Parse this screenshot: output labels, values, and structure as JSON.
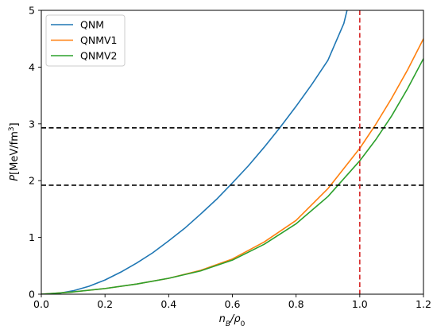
{
  "chart_data": {
    "type": "line",
    "title": "",
    "xlabel_main": "n",
    "xlabel_sub": "B",
    "xlabel_sep": "/ρ",
    "xlabel_sub2": "0",
    "ylabel_main": "P",
    "ylabel_unit": "[MeV/fm",
    "ylabel_sup": "3",
    "ylabel_close": "]",
    "xlim": [
      0.0,
      1.2
    ],
    "ylim": [
      0,
      5
    ],
    "xticks": [
      0.0,
      0.2,
      0.4,
      0.6,
      0.8,
      1.0,
      1.2
    ],
    "xtick_labels": [
      "0.0",
      "0.2",
      "0.4",
      "0.6",
      "0.8",
      "1.0",
      "1.2"
    ],
    "yticks": [
      0,
      1,
      2,
      3,
      4,
      5
    ],
    "ytick_labels": [
      "0",
      "1",
      "2",
      "3",
      "4",
      "5"
    ],
    "grid": false,
    "legend_position": "top-left",
    "series": [
      {
        "name": "QNM",
        "color": "#1f77b4",
        "x": [
          0.0,
          0.05,
          0.1,
          0.15,
          0.2,
          0.25,
          0.3,
          0.35,
          0.4,
          0.45,
          0.5,
          0.55,
          0.6,
          0.65,
          0.7,
          0.75,
          0.8,
          0.85,
          0.9,
          0.95,
          0.96
        ],
        "y": [
          0.0,
          0.01,
          0.06,
          0.14,
          0.25,
          0.39,
          0.55,
          0.73,
          0.94,
          1.16,
          1.41,
          1.67,
          1.96,
          2.26,
          2.59,
          2.94,
          3.31,
          3.7,
          4.12,
          4.77,
          5.0
        ]
      },
      {
        "name": "QNMV1",
        "color": "#ff7f0e",
        "x": [
          0.0,
          0.1,
          0.2,
          0.3,
          0.4,
          0.5,
          0.6,
          0.7,
          0.8,
          0.9,
          1.0,
          1.05,
          1.1,
          1.15,
          1.2
        ],
        "y": [
          0.0,
          0.04,
          0.1,
          0.18,
          0.28,
          0.42,
          0.62,
          0.92,
          1.3,
          1.86,
          2.57,
          2.99,
          3.45,
          3.95,
          4.5
        ]
      },
      {
        "name": "QNMV2",
        "color": "#2ca02c",
        "x": [
          0.0,
          0.1,
          0.2,
          0.3,
          0.4,
          0.5,
          0.6,
          0.7,
          0.8,
          0.9,
          1.0,
          1.05,
          1.1,
          1.15,
          1.2
        ],
        "y": [
          0.0,
          0.04,
          0.1,
          0.18,
          0.28,
          0.41,
          0.6,
          0.88,
          1.24,
          1.72,
          2.35,
          2.72,
          3.14,
          3.62,
          4.15
        ]
      }
    ],
    "hlines": [
      {
        "y": 2.93,
        "color": "#000000",
        "style": "dashed"
      },
      {
        "y": 1.92,
        "color": "#000000",
        "style": "dashed"
      }
    ],
    "vlines": [
      {
        "x": 1.0,
        "color": "#d62728",
        "style": "dashed"
      }
    ]
  }
}
